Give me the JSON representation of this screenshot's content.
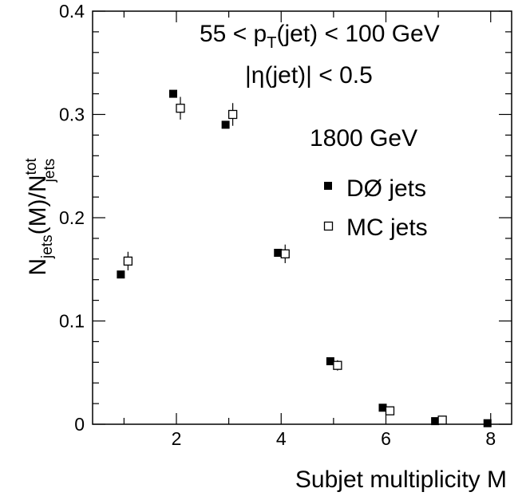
{
  "chart_data": {
    "type": "scatter",
    "xlabel": "Subjet multiplicity M",
    "ylabel": "N_jets(M)/N_jets^tot",
    "xlim": [
      0.4,
      8.4
    ],
    "ylim": [
      0,
      0.4
    ],
    "x_ticks": [
      2,
      4,
      6,
      8
    ],
    "y_ticks": [
      0,
      0.1,
      0.2,
      0.3,
      0.4
    ],
    "x_tick_labels": [
      "2",
      "4",
      "6",
      "8"
    ],
    "y_tick_labels": [
      "0",
      "0.1",
      "0.2",
      "0.3",
      "0.4"
    ],
    "grid": false,
    "legend_position": "right, below annotations",
    "annotations": {
      "pt_cut": {
        "prefix": "55 < p",
        "sub": "T",
        "suffix": "(jet) < 100 GeV"
      },
      "eta_cut": "|η(jet)| < 0.5",
      "energy": "1800 GeV"
    },
    "series": [
      {
        "name": "DØ jets",
        "marker": "filled-square",
        "x": [
          1,
          2,
          3,
          4,
          5,
          6,
          7,
          8
        ],
        "y": [
          0.145,
          0.32,
          0.29,
          0.166,
          0.061,
          0.016,
          0.003,
          0.001
        ],
        "err": [
          0.002,
          0.003,
          0.003,
          0.002,
          0.002,
          0.001,
          0.001,
          0.0005
        ]
      },
      {
        "name": "MC jets",
        "marker": "open-square",
        "x": [
          1,
          2,
          3,
          4,
          5,
          6,
          7
        ],
        "y": [
          0.158,
          0.306,
          0.3,
          0.165,
          0.057,
          0.013,
          0.004
        ],
        "err": [
          0.009,
          0.011,
          0.011,
          0.009,
          0.005,
          0.003,
          0.001
        ]
      }
    ]
  }
}
